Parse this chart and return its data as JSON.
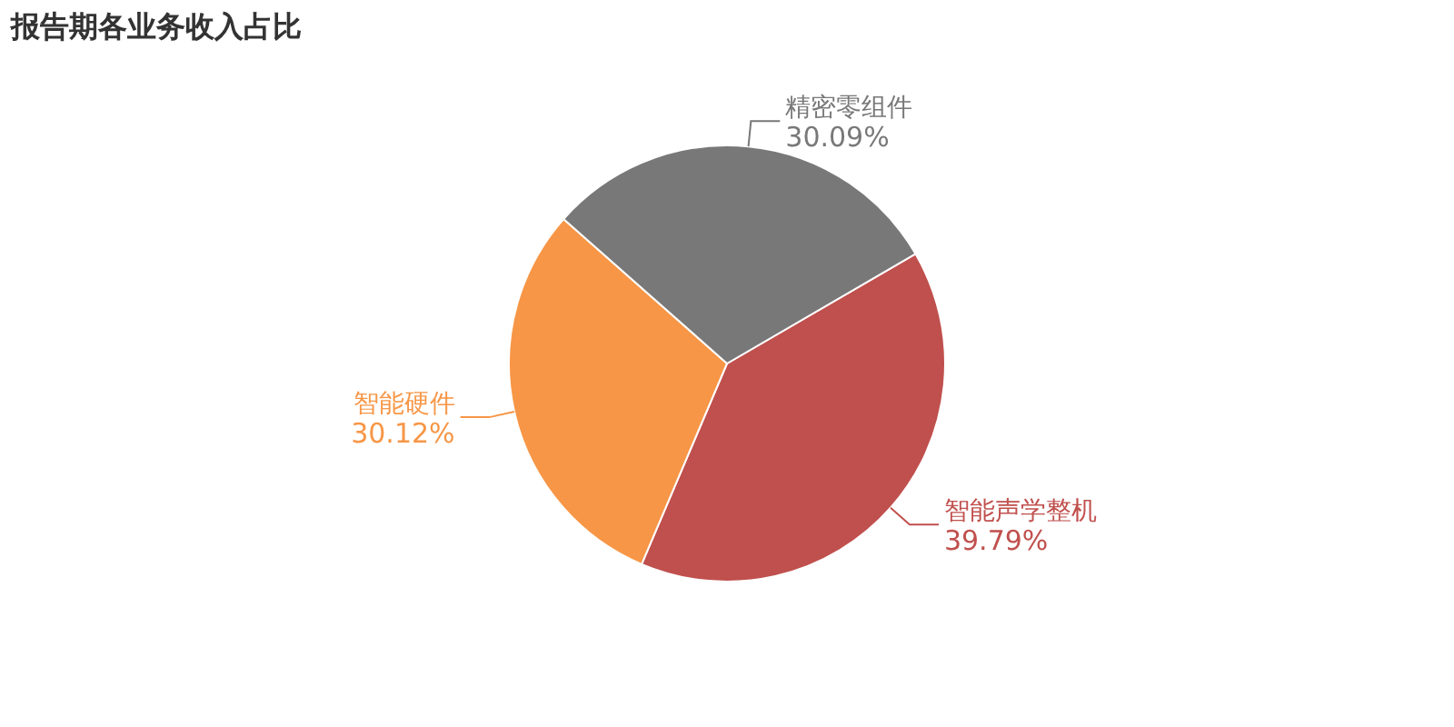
{
  "chart_data": {
    "type": "pie",
    "title": "报告期各业务收入占比",
    "categories": [
      "智能声学整机",
      "智能硬件",
      "精密零组件"
    ],
    "values": [
      39.79,
      30.12,
      30.09
    ],
    "colors": [
      "#c0504d",
      "#f79646",
      "#787878"
    ],
    "value_labels": [
      "39.79%",
      "30.12%",
      "30.09%"
    ]
  }
}
